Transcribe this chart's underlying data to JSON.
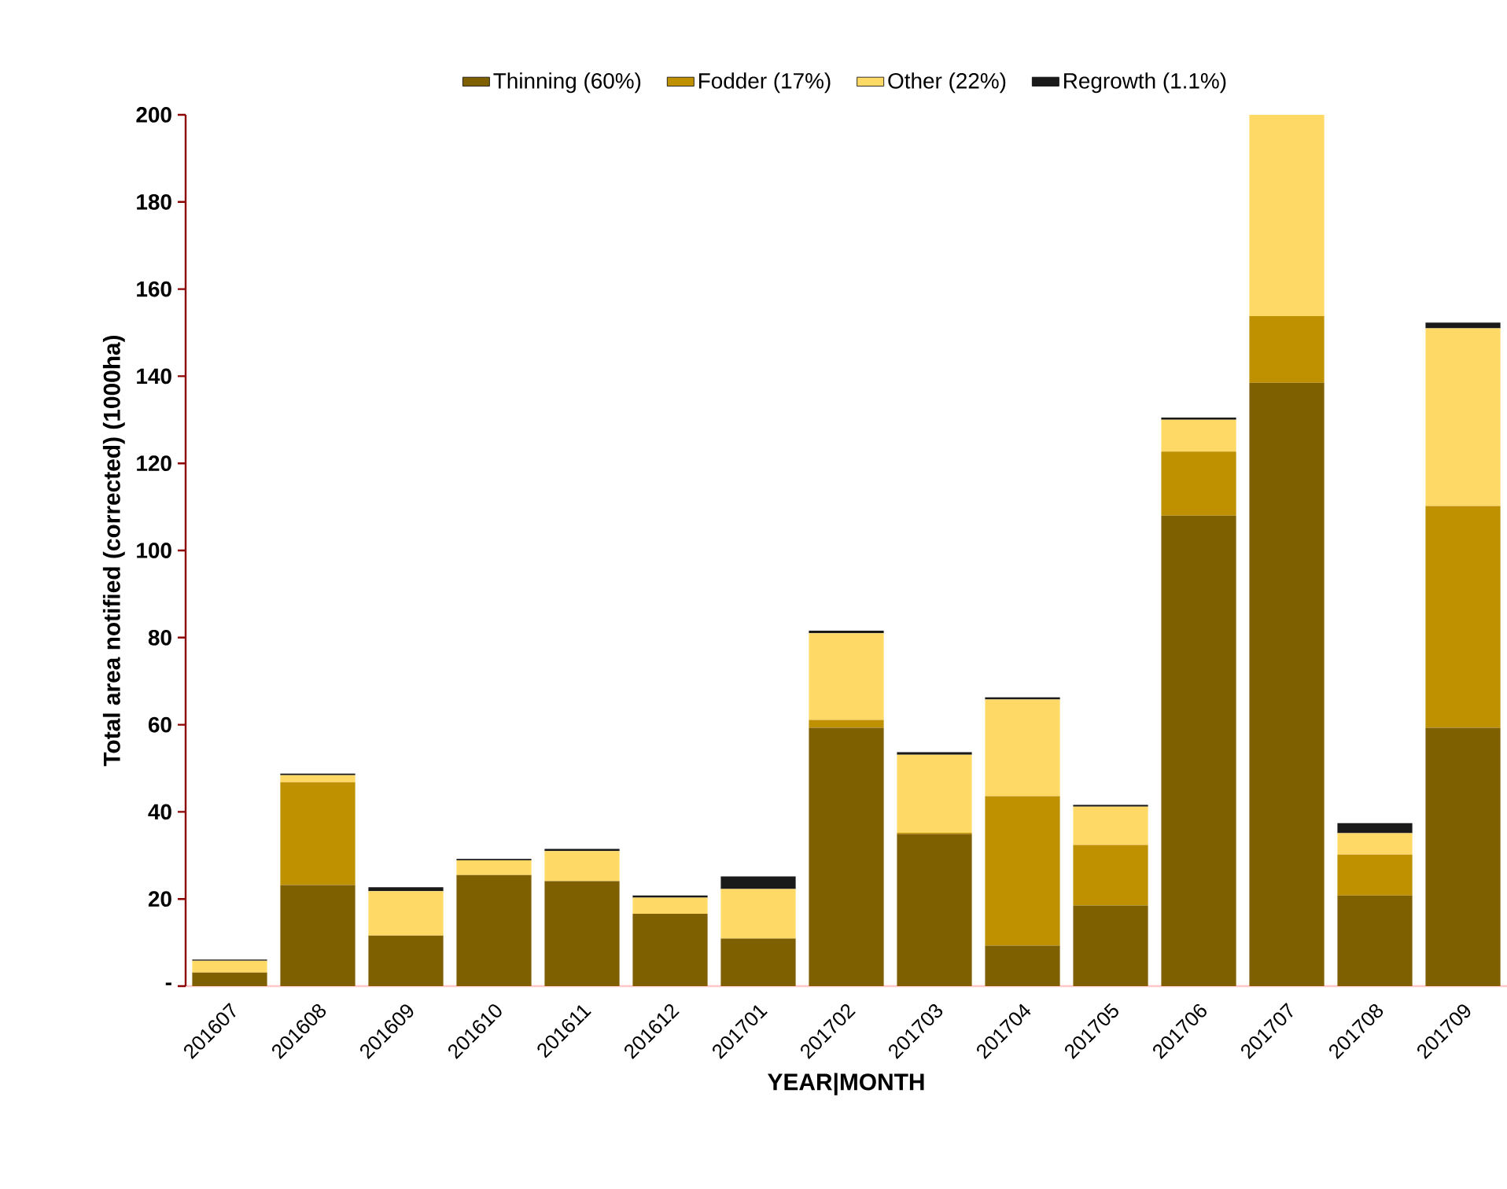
{
  "chart_data": {
    "type": "bar",
    "stacked": true,
    "xlabel": "YEAR|MONTH",
    "ylabel": "Total area notified (corrected) (1000ha)",
    "categories": [
      "201607",
      "201608",
      "201609",
      "201610",
      "201611",
      "201612",
      "201701",
      "201702",
      "201703",
      "201704",
      "201705",
      "201706",
      "201707",
      "201708",
      "201709"
    ],
    "series": [
      {
        "name": "Thinning (60%)",
        "color": "#7f6000",
        "values": [
          3.1,
          23.2,
          11.6,
          25.5,
          24.1,
          16.6,
          10.9,
          59.3,
          34.9,
          9.3,
          18.5,
          108,
          138.5,
          20.8,
          59.3
        ]
      },
      {
        "name": "Fodder (17%)",
        "color": "#bf9000",
        "values": [
          0,
          23.6,
          0,
          0,
          0,
          0,
          0,
          1.8,
          0.3,
          34.3,
          13.9,
          14.7,
          15.3,
          9.4,
          50.9
        ]
      },
      {
        "name": "Other (22%)",
        "color": "#ffd966",
        "values": [
          2.7,
          1.6,
          10.2,
          3.4,
          6.9,
          3.7,
          11.4,
          19.9,
          17.9,
          22.2,
          8.8,
          7.3,
          46.2,
          4.9,
          40.8
        ]
      },
      {
        "name": "Regrowth (1.1%)",
        "color": "#1a1a1a",
        "values": [
          0.3,
          0.4,
          0.9,
          0.3,
          0.5,
          0.5,
          2.9,
          0.6,
          0.6,
          0.5,
          0.4,
          0.5,
          0,
          2.3,
          1.3
        ]
      }
    ],
    "ylim": [
      0,
      200
    ],
    "yticks": [
      {
        "value": 0,
        "label": "-"
      },
      20,
      40,
      60,
      80,
      100,
      120,
      140,
      160,
      180,
      200
    ],
    "grid": false,
    "legend": "top"
  }
}
